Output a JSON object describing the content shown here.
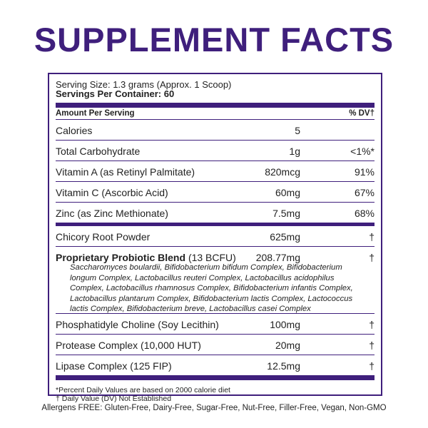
{
  "header": {
    "title": "SUPPLEMENT FACTS"
  },
  "serving": {
    "size": "Serving Size: 1.3 grams (Approx. 1 Scoop)",
    "servings": "Servings Per Container: 60"
  },
  "table": {
    "header": [
      "Amount Per Serving",
      "% DV†"
    ],
    "rows": [
      {
        "name": "Calories",
        "amount": "5",
        "dv": ""
      },
      {
        "name": "Total Carbohydrate",
        "amount": "1g",
        "dv": "<1%*"
      },
      {
        "name": "Vitamin A (as Retinyl Palmitate)",
        "amount": "820mcg",
        "dv": "91%"
      },
      {
        "name": "Vitamin C (Ascorbic Acid)",
        "amount": "60mg",
        "dv": "67%"
      },
      {
        "name": "Zinc (as Zinc Methionate)",
        "amount": "7.5mg",
        "dv": "68%"
      },
      {
        "name": "Chicory Root Powder",
        "amount": "625mg",
        "dv": "†"
      },
      {
        "name": "Proprietary Probiotic Blend",
        "note": "(13 BCFU)",
        "amount": "208.77mg",
        "dv": "†",
        "description": "Saccharomyces boulardii, Bifidobacterium bifidum Complex, Bifidobacterium longum Complex, Lactobacillus reuteri Complex, Lactobacillus acidophilus Complex, Lactobacillus rhamnosus Complex, Bifidobacterium infantis Complex, Lactobacillus plantarum Complex, Bifidobacterium lactis Complex, Lactococcus lactis Complex, Bifidobacterium breve, Lactobacillus casei Complex"
      },
      {
        "name": "Phosphatidyle Choline (Soy Lecithin)",
        "amount": "100mg",
        "dv": "†"
      },
      {
        "name": "Protease Complex (10,000 HUT)",
        "amount": "20mg",
        "dv": "†"
      },
      {
        "name": "Lipase Complex (125 FIP)",
        "amount": "12.5mg",
        "dv": "†"
      }
    ]
  },
  "footnotes": [
    "*Percent Daily Values are based on 2000 calorie diet",
    "† Daily Value (DV) Not Established"
  ],
  "allergens": "Allergens FREE: Gluten-Free, Dairy-Free, Sugar-Free, Nut-Free, Filler-Free, Vegan, Non-GMO"
}
